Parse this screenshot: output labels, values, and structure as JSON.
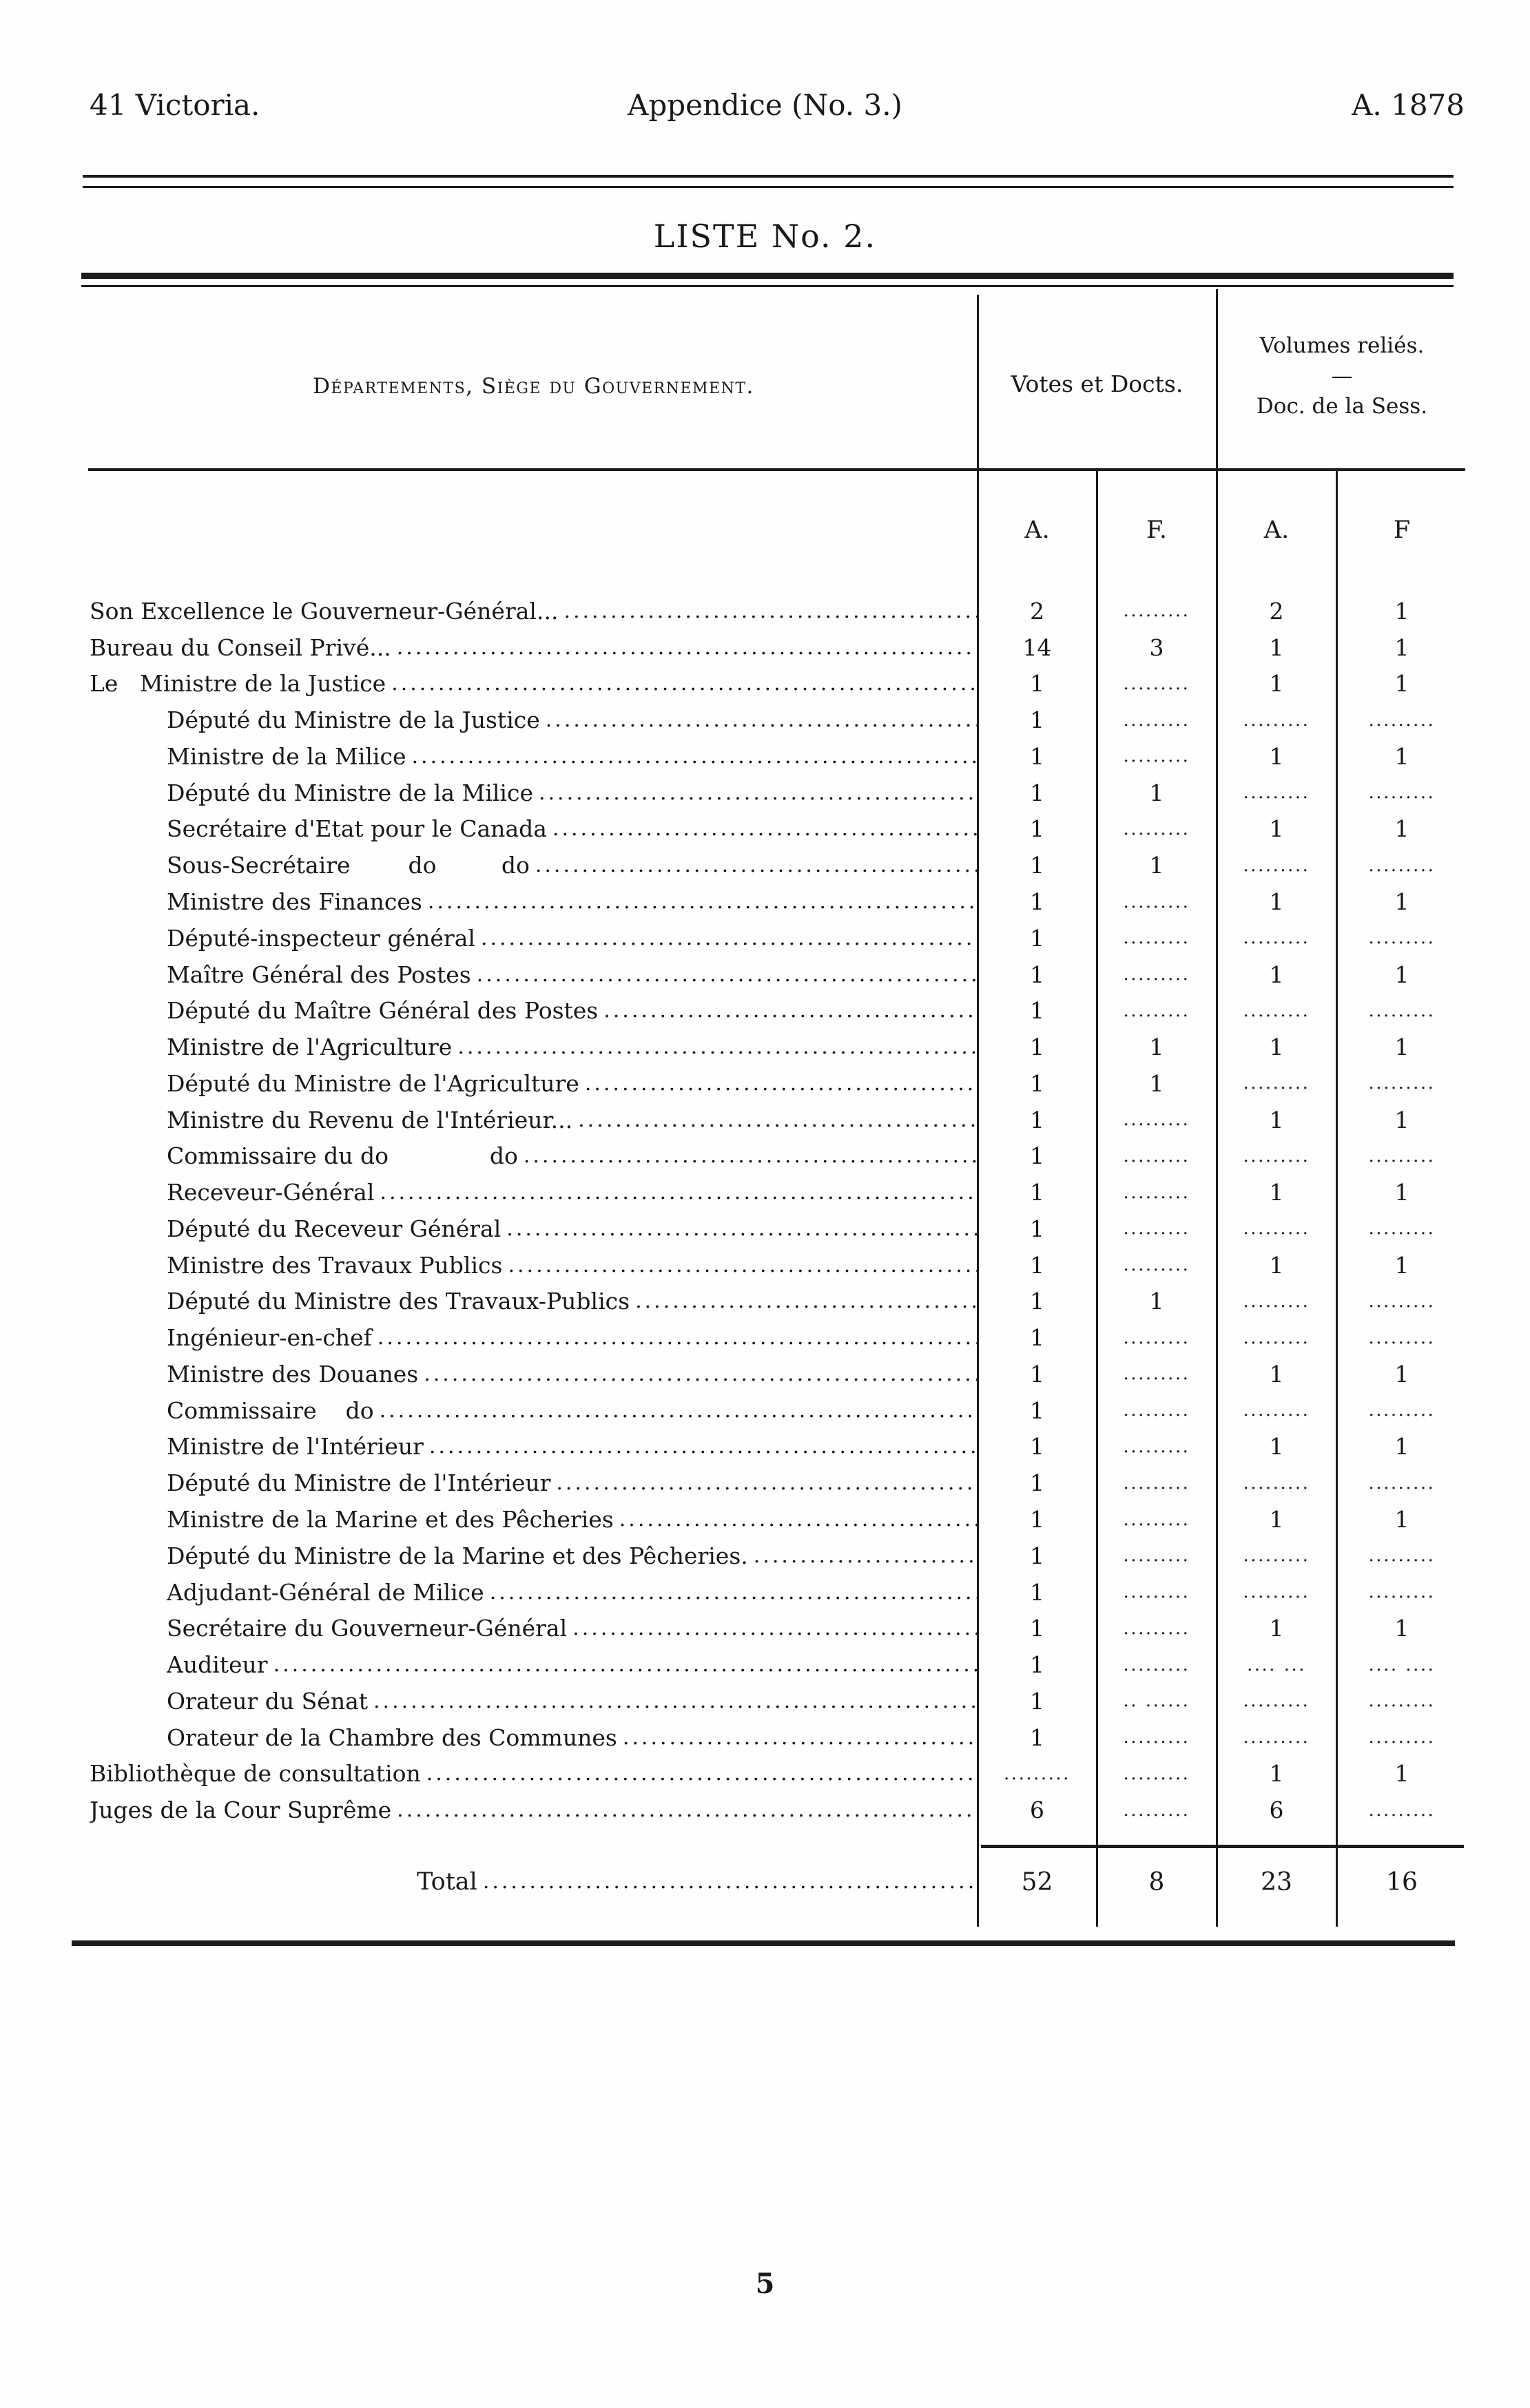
{
  "page": {
    "header_left": "41 Victoria.",
    "header_center": "Appendice (No. 3.)",
    "header_right": "A. 1878",
    "list_title": "LISTE No. 2.",
    "page_number": "5"
  },
  "table": {
    "dept_header": "Départements, Siège du Gouvernement.",
    "votes_header": "Votes et Docts.",
    "volumes_header_line1": "Volumes reliés.",
    "volumes_header_dash": "—",
    "volumes_header_line2": "Doc. de la Sess.",
    "subheaders": [
      "A.",
      "F.",
      "A.",
      "F"
    ],
    "leader": "......................................................................................................................",
    "rows": [
      {
        "label": "Son Excellence le Gouverneur-Général...",
        "indent": 0,
        "cells": [
          "2",
          ".........",
          "2",
          "1"
        ]
      },
      {
        "label": "Bureau du Conseil Privé...",
        "indent": 0,
        "cells": [
          "14",
          "3",
          "1",
          "1"
        ]
      },
      {
        "label": "Le   Ministre de la Justice",
        "indent": 0,
        "cells": [
          "1",
          ".........",
          "1",
          "1"
        ]
      },
      {
        "label": "Député du Ministre de la Justice",
        "indent": 1,
        "cells": [
          "1",
          ".........",
          ".........",
          "........."
        ]
      },
      {
        "label": "Ministre de la Milice",
        "indent": 1,
        "cells": [
          "1",
          ".........",
          "1",
          "1"
        ]
      },
      {
        "label": "Député du Ministre de la Milice",
        "indent": 1,
        "cells": [
          "1",
          "1",
          ".........",
          "........."
        ]
      },
      {
        "label": "Secrétaire d'Etat pour le Canada",
        "indent": 1,
        "cells": [
          "1",
          ".........",
          "1",
          "1"
        ]
      },
      {
        "label": "Sous-Secrétaire        do         do",
        "indent": 1,
        "cells": [
          "1",
          "1",
          ".........",
          "........."
        ]
      },
      {
        "label": "Ministre des Finances",
        "indent": 1,
        "cells": [
          "1",
          ".........",
          "1",
          "1"
        ]
      },
      {
        "label": "Député-inspecteur général",
        "indent": 1,
        "cells": [
          "1",
          ".........",
          ".........",
          "........."
        ]
      },
      {
        "label": "Maître Général des Postes",
        "indent": 1,
        "cells": [
          "1",
          ".........",
          "1",
          "1"
        ]
      },
      {
        "label": "Député du Maître Général des Postes",
        "indent": 1,
        "cells": [
          "1",
          ".........",
          ".........",
          "........."
        ]
      },
      {
        "label": "Ministre de l'Agriculture",
        "indent": 1,
        "cells": [
          "1",
          "1",
          "1",
          "1"
        ]
      },
      {
        "label": "Député du Ministre de l'Agriculture",
        "indent": 1,
        "cells": [
          "1",
          "1",
          ".........",
          "........."
        ]
      },
      {
        "label": "Ministre du Revenu de l'Intérieur...",
        "indent": 1,
        "cells": [
          "1",
          ".........",
          "1",
          "1"
        ]
      },
      {
        "label": "Commissaire du do              do",
        "indent": 1,
        "cells": [
          "1",
          ".........",
          ".........",
          "........."
        ]
      },
      {
        "label": "Receveur-Général",
        "indent": 1,
        "cells": [
          "1",
          ".........",
          "1",
          "1"
        ]
      },
      {
        "label": "Député du Receveur Général",
        "indent": 1,
        "cells": [
          "1",
          ".........",
          ".........",
          "........."
        ]
      },
      {
        "label": "Ministre des Travaux Publics",
        "indent": 1,
        "cells": [
          "1",
          ".........",
          "1",
          "1"
        ]
      },
      {
        "label": "Député du Ministre des Travaux-Publics",
        "indent": 1,
        "cells": [
          "1",
          "1",
          ".........",
          "........."
        ]
      },
      {
        "label": "Ingénieur-en-chef",
        "indent": 1,
        "cells": [
          "1",
          ".........",
          ".........",
          "........."
        ]
      },
      {
        "label": "Ministre des Douanes",
        "indent": 1,
        "cells": [
          "1",
          ".........",
          "1",
          "1"
        ]
      },
      {
        "label": "Commissaire    do",
        "indent": 1,
        "cells": [
          "1",
          ".........",
          ".........",
          "........."
        ]
      },
      {
        "label": "Ministre de l'Intérieur",
        "indent": 1,
        "cells": [
          "1",
          ".........",
          "1",
          "1"
        ]
      },
      {
        "label": "Député du Ministre de l'Intérieur",
        "indent": 1,
        "cells": [
          "1",
          ".........",
          ".........",
          "........."
        ]
      },
      {
        "label": "Ministre de la Marine et des Pêcheries",
        "indent": 1,
        "cells": [
          "1",
          ".........",
          "1",
          "1"
        ]
      },
      {
        "label": "Député du Ministre de la Marine et des Pêcheries.",
        "indent": 1,
        "cells": [
          "1",
          ".........",
          ".........",
          "........."
        ]
      },
      {
        "label": "Adjudant-Général de Milice",
        "indent": 1,
        "cells": [
          "1",
          ".........",
          ".........",
          "........."
        ]
      },
      {
        "label": "Secrétaire du Gouverneur-Général",
        "indent": 1,
        "cells": [
          "1",
          ".........",
          "1",
          "1"
        ]
      },
      {
        "label": "Auditeur",
        "indent": 1,
        "cells": [
          "1",
          ".........",
          ".... ...",
          ".... ...."
        ]
      },
      {
        "label": "Orateur du Sénat",
        "indent": 1,
        "cells": [
          "1",
          ".. ......",
          ".........",
          "........."
        ]
      },
      {
        "label": "Orateur de la Chambre des Communes",
        "indent": 1,
        "cells": [
          "1",
          ".........",
          ".........",
          "........."
        ]
      },
      {
        "label": "Bibliothèque de consultation",
        "indent": 0,
        "cells": [
          ".........",
          ".........",
          "1",
          "1"
        ]
      },
      {
        "label": "Juges de la Cour Suprême",
        "indent": 0,
        "cells": [
          "6",
          ".........",
          "6",
          "........."
        ]
      }
    ],
    "total": {
      "label": "Total",
      "values": [
        "52",
        "8",
        "23",
        "16"
      ]
    }
  }
}
